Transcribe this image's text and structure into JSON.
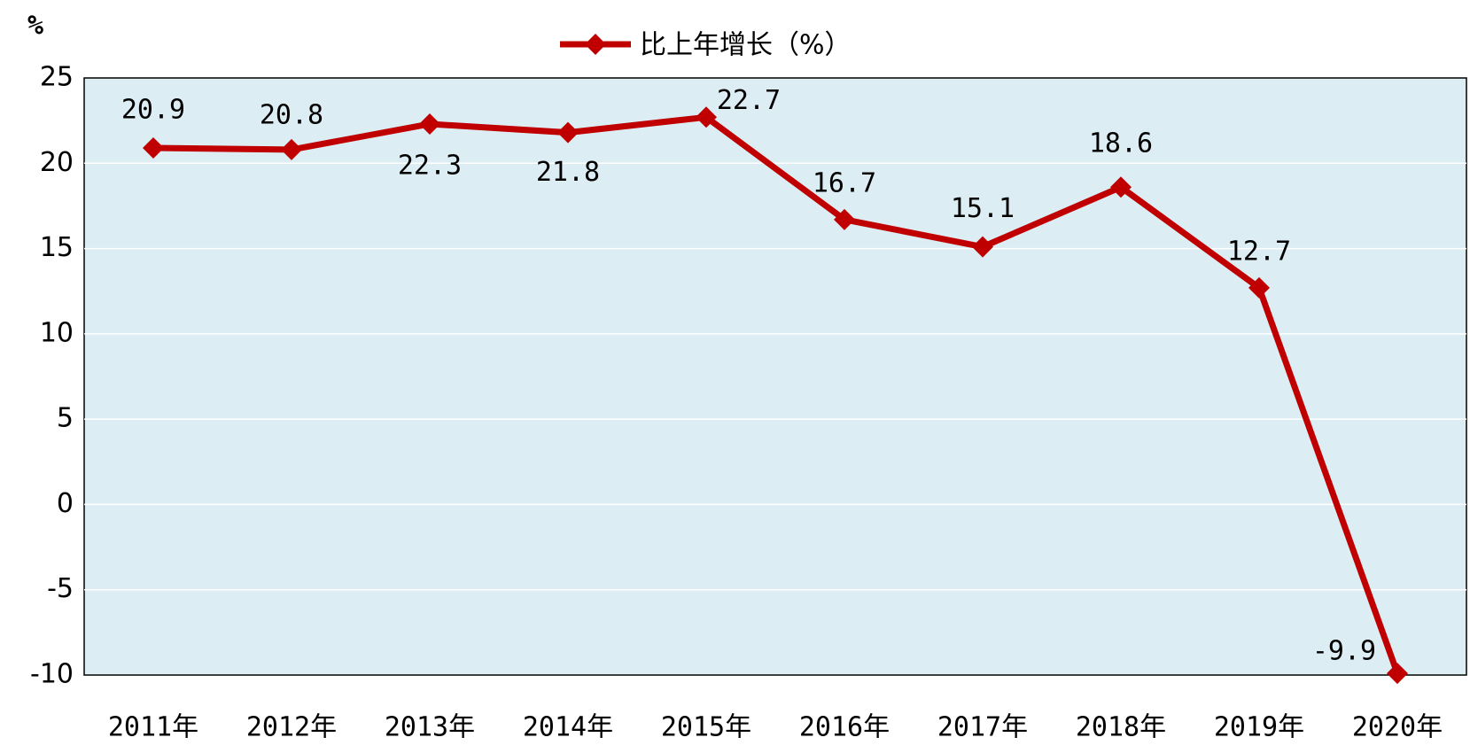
{
  "chart_data": {
    "type": "line",
    "y_axis_label": "%",
    "categories": [
      "2011年",
      "2012年",
      "2013年",
      "2014年",
      "2015年",
      "2016年",
      "2017年",
      "2018年",
      "2019年",
      "2020年"
    ],
    "series": [
      {
        "name": "比上年增长（%）",
        "color": "#c00000",
        "values": [
          20.9,
          20.8,
          22.3,
          21.8,
          22.7,
          16.7,
          15.1,
          18.6,
          12.7,
          -9.9
        ]
      }
    ],
    "ylim": [
      -10,
      25
    ],
    "yticks": [
      -10,
      -5,
      0,
      5,
      10,
      15,
      20,
      25
    ],
    "grid": true,
    "legend": "top"
  }
}
